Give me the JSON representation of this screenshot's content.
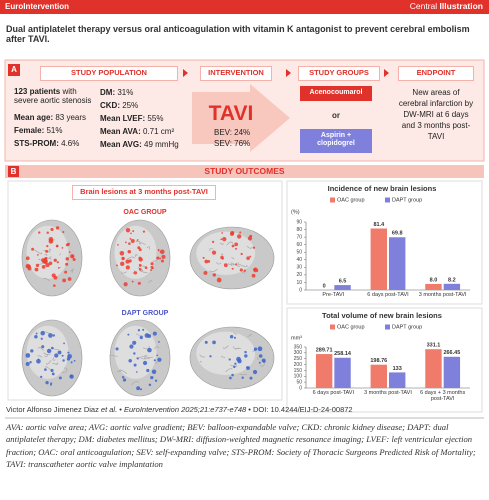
{
  "header": {
    "brand": "EuroIntervention",
    "label_plain": "Central",
    "label_bold": "Illustration"
  },
  "title": "Dual antiplatelet therapy versus oral anticoagulation with vitamin K antagonist to prevent cerebral embolism after TAVI.",
  "section_a": {
    "letter": "A",
    "population": {
      "heading": "STUDY POPULATION",
      "lead_bold": "123 patients",
      "lead_rest": "with severe aortic stenosis",
      "left": [
        {
          "label": "Mean age:",
          "value": "83 years"
        },
        {
          "label": "Female:",
          "value": "51%"
        },
        {
          "label": "STS-PROM:",
          "value": "4.6%"
        }
      ],
      "right": [
        {
          "label": "DM:",
          "value": "31%"
        },
        {
          "label": "CKD:",
          "value": "25%"
        },
        {
          "label": "Mean LVEF:",
          "value": "55%"
        },
        {
          "label": "Mean AVA:",
          "value": "0.71 cm²"
        },
        {
          "label": "Mean AVG:",
          "value": "49 mmHg"
        }
      ]
    },
    "intervention": {
      "heading": "INTERVENTION",
      "name": "TAVI",
      "items": [
        "BEV: 24%",
        "SEV: 76%"
      ]
    },
    "groups": {
      "heading": "STUDY GROUPS",
      "oac": "Acenocoumarol",
      "or": "or",
      "dapt": "Aspirin + clopidogrel"
    },
    "endpoint": {
      "heading": "ENDPOINT",
      "text": "New areas of cerebral infarction by DW-MRI at 6 days and 3 months post-TAVI"
    }
  },
  "section_b": {
    "letter": "B",
    "heading": "STUDY OUTCOMES",
    "panel_title": "Brain lesions at 3 months post-TAVI",
    "oac_group": "OAC GROUP",
    "dapt_group": "DAPT GROUP"
  },
  "chart_data": [
    {
      "type": "bar",
      "title": "Incidence of new brain lesions",
      "y_label": "(%)",
      "categories": [
        "Pre-TAVI",
        "6 days post-TAVI",
        "3 months post-TAVI"
      ],
      "series": [
        {
          "name": "OAC group",
          "color": "#f07b6b",
          "values": [
            0,
            81.4,
            8.0
          ],
          "value_labels": [
            "0",
            "81.4",
            "8.0"
          ]
        },
        {
          "name": "DAPT group",
          "color": "#7e80db",
          "values": [
            6.5,
            69.8,
            8.2
          ]
        }
      ],
      "ylim": [
        0,
        90
      ],
      "yticks": [
        0,
        10,
        20,
        30,
        40,
        50,
        60,
        70,
        80,
        90
      ]
    },
    {
      "type": "bar",
      "title": "Total volume of new brain lesions",
      "y_label": "mm³",
      "categories": [
        "6 days post-TAVI",
        "3 months post-TAVI",
        "6 days + 3 months post-TAVI"
      ],
      "series": [
        {
          "name": "OAC group",
          "color": "#f07b6b",
          "values": [
            289.71,
            198.76,
            331.1
          ]
        },
        {
          "name": "DAPT group",
          "color": "#7e80db",
          "values": [
            258.14,
            133,
            266.45
          ]
        }
      ],
      "ylim": [
        0,
        350
      ],
      "yticks": [
        0,
        50,
        100,
        150,
        200,
        250,
        300,
        350
      ]
    }
  ],
  "citation": {
    "authors": "Victor Alfonso Jimenez Diaz",
    "etal": "et al.",
    "journal": "EuroIntervention 2025;21:e737-e748",
    "doi": "DOI: 10.4244/EIJ-D-24-00872"
  },
  "footnote": "AVA: aortic valve area; AVG: aortic valve gradient; BEV: balloon-expandable valve; CKD: chronic kidney disease; DAPT: dual antiplatelet therapy; DM: diabetes mellitus; DW-MRI: diffusion-weighted magnetic resonance imaging; LVEF: left ventricular ejection fraction; OAC: oral anticoagulation; SEV: self-expanding valve; STS-PROM: Society of Thoracic Surgeons Predicted Risk of Mortality; TAVI: transcatheter aortic valve implantation"
}
